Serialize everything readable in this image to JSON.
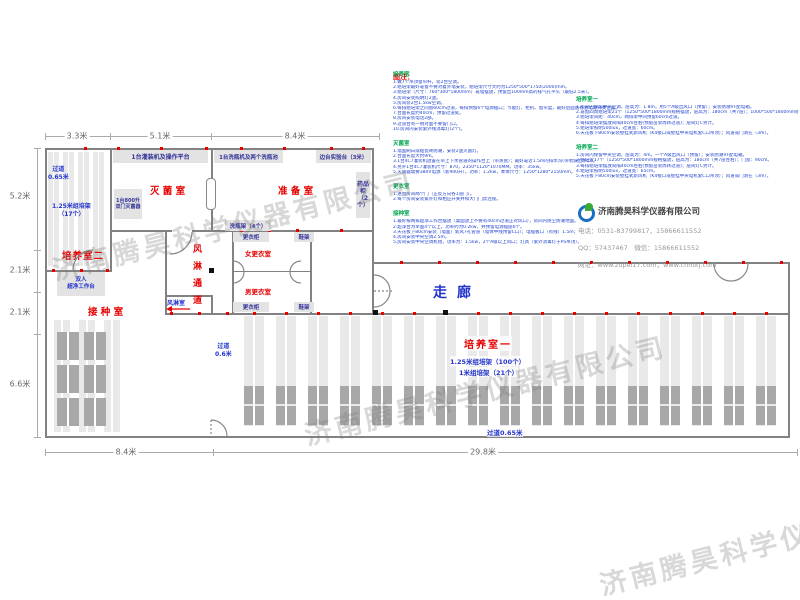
{
  "watermark": {
    "text": "济南腾昊科学仪器有限公司"
  },
  "dimensions": {
    "top": [
      "3.3米",
      "5.1米",
      "8.4米"
    ],
    "left": [
      "5.2米",
      "2.1米",
      "2.1米",
      "6.6米"
    ],
    "bottom": [
      "8.4米",
      "29.8米"
    ]
  },
  "plan": {
    "rooms": {
      "room2": "培养室二",
      "sterilization": "灭 菌 室",
      "preparation": "准 备 室",
      "inoculation": "接 种 室",
      "air_shower_passage": "风淋通道",
      "women_changing": "女更衣室",
      "men_changing": "男更衣室",
      "corridor": "走廊",
      "room1": "培养室一",
      "air_shower_room": "风淋室"
    },
    "equipment": {
      "filling_machine": "1台灌装机及操作平台",
      "bottle_washer": "1台洗瓶机及两个洗瓶池",
      "side_bench": "边台实验台（3米）",
      "sterilizer_line1": "1台800升",
      "sterilizer_line2": "双门灭菌器",
      "medicine_cabinet": "药品柜（2个）",
      "bottle_rack": "洗瓶架（4个）",
      "wardrobe": "更衣柜",
      "shoe_rack": "鞋架",
      "clean_bench_line1": "双人",
      "clean_bench_line2": "超净工作台"
    },
    "annotations": {
      "aisle_room2_line1": "过道",
      "aisle_room2_line2": "0.65米",
      "racks_room2_line1": "1.25米组培架",
      "racks_room2_line2": "（17个）",
      "aisle_room1_left_line1": "过道",
      "aisle_room1_left_line2": "0.6米",
      "racks_room1_a": "1.25米组培架（100个）",
      "racks_room1_b": "1米组培架（21个）",
      "aisle_room1_bottom": "过道0.65米"
    }
  },
  "legend": {
    "title": "图注：",
    "left_sections": [
      {
        "header": "培养室",
        "lines": [
          "1.做7个吊顶窗帘杆，装2台空调。",
          "2.组培架最好靠窗不要对着外墙安装，组培架尺寸大约为1250*500*1750(2000)mm。",
          "3.组培架（尺寸：760*300*1800mm）靠墙摆放，预留出100mm高的排气孔平头（最低2.5米）。",
          "4.房间安装照明灯2盏。",
          "5.房间装2台1.5kw空调。",
          "6.每排组培架之间留60cm过道，每排预留6个电源插口；节能灯、柜机、窗帘盒，最好后面留有总电源开关位置。",
          "7.台面长度约40cm，预留过道处。",
          "8.房间安装电话2部。",
          "9.过道台有一侧对面不要留门口。",
          "10.房间内安装紫外线消毒灯(2个)。"
        ]
      },
      {
        "header": "灭菌室",
        "lines": [
          "1.墙面刷白或贴瓷砖防潮，安装2盏灭菌灯。",
          "2.台面长度大约9m。",
          "3.1台4C7灌装机放置在带上下水管道的操作台上（带蒸盘）；最好靠近1.5m的排水沟(带地漏出水口)。",
          "4.另外1台4C7灌装机尺寸：870，2350*1120*1070MM。功率：35kw。",
          "5.灭菌器需要380V电源（新900升），功率：1.2kw，本体尺寸：1250*1280*2150mm。"
        ]
      },
      {
        "header": "更衣室",
        "lines": [
          "1.进出房间两个门（正反方向各1道门）。",
          "2.每个房间安装紫外灯和相应开关并和大门门禁连锁。"
        ]
      },
      {
        "header": "接种室",
        "lines": [
          "1.最好按两排超净工作台摆放（桌面放上不要有40cm过道正对风口），房间内防尘防潮地面。",
          "2.超净台为单面4个以上，功率约为0.2kw，并预留电源插座6个。",
          "3.天花板下80cm安装（墙面）新风7孔管道（墙体中线预留C口）；电插板口（有线）1.5m；",
          "4.房间安装中央空调2.5m。",
          "5.房间安装中央空调机组，功率为：1.5kw，2个A级以上风口；灯具（紫外消毒灯于PS吊顶）。"
        ]
      }
    ],
    "right_sections": [
      {
        "header": "培养室一",
        "lines": [
          "1.房间内保留中央空调，层高为：1.8m，用5个A级出风口（预留）；安装防潮VF配电箱。",
          "2.靠窗四周组培架21个（1250*500*1800mm规格摆放，层高为：180cm（共7层）；1000*500*1800mm组培架摆放（层高为：140cm）。",
          "3.组培架间距：40cm，两排架中间预留60cm过道。",
          "4.每排组培架摆放间隔40cm左右(预留苗架周转过道)；层间灯C另计。",
          "5.组培架照明500lux，过道宽：60cm。",
          "6.天花板下80cm安装壁挂式新风机（K4接口或壁挂中央电机套C口吊顶）；风道或门洞在（3m）。"
        ]
      },
      {
        "header": "培养室二",
        "lines": [
          "1.房间内保留中央空调，层高为：4m，一个A级出风口（预留）；安装防潮VF配电箱。",
          "2.组培架17个（1250*500*1800mm规格摆放，层高为：180cm（共7层左右）；门宽：90cm。",
          "3.每排组培架摆放间隔40cm左右(预留苗架周转过道)；层间灯C另计。",
          "4.组培架照明500lux，过道宽：65cm。",
          "5.天花板下80cm安装壁挂式新风机（K4接口或壁挂中央电机套C口吊顶）；风道或门洞在（3m）。"
        ]
      }
    ]
  },
  "company": {
    "name": "济南腾昊科学仪器有限公司",
    "phone": "电话：0531-83799817，15866611552",
    "qq_wechat": "QQ：57437467　微信：15866611552",
    "website": "网址：www.zupei17.com，www.cnhtkj.com"
  }
}
